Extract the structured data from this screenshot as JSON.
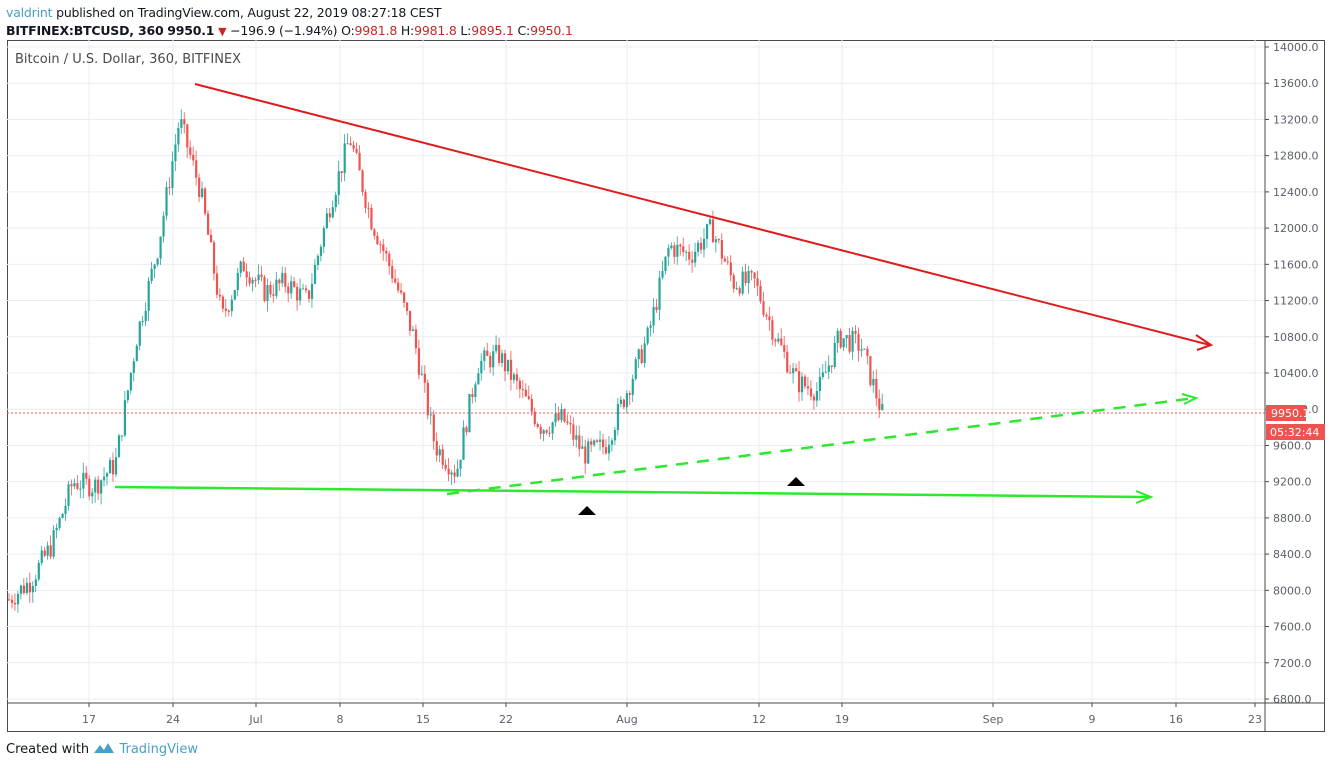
{
  "header": {
    "publisher": "valdrint",
    "published_text": "published on TradingView.com, August 22, 2019 08:27:18 CEST",
    "symbol": "BITFINEX:BTCUSD, 360",
    "last_price": "9950.1",
    "change": "−196.9 (−1.94%)",
    "open_label": "O:",
    "open": "9981.8",
    "high_label": "H:",
    "high": "9981.8",
    "low_label": "L:",
    "low": "9895.1",
    "close_label": "C:",
    "close": "9950.1"
  },
  "legend": {
    "title": "Bitcoin / U.S. Dollar, 360, BITFINEX"
  },
  "price_tag": {
    "price": "9950.1",
    "countdown": "05:32:44",
    "color": "#ef5350"
  },
  "footer": {
    "created_with": "Created with",
    "brand": "TradingView"
  },
  "colors": {
    "up": "#26a69a",
    "down": "#ef5350",
    "resistance_line": "#e01b1b",
    "support_line": "#2ee82e",
    "grid": "#e9eef3",
    "marker": "#000000"
  },
  "chart_data": {
    "type": "candlestick",
    "title": "Bitcoin / U.S. Dollar, 360, BITFINEX",
    "xlabel": "",
    "ylabel": "",
    "ylim": [
      6800,
      14000
    ],
    "y_ticks": [
      "14000.0",
      "13600.0",
      "13200.0",
      "12800.0",
      "12400.0",
      "12000.0",
      "11600.0",
      "11200.0",
      "10800.0",
      "10400.0",
      "10000.0",
      "9600.0",
      "9200.0",
      "8800.0",
      "8400.0",
      "8000.0",
      "7600.0",
      "7200.0",
      "6800.0"
    ],
    "x_ticks": [
      "17",
      "24",
      "Jul",
      "8",
      "15",
      "22",
      "Aug",
      "12",
      "19",
      "Sep",
      "9",
      "16",
      "23"
    ],
    "grid": true,
    "current_price": 9950.1,
    "approx_closes": {
      "x": [
        "Jun 11",
        "Jun 13",
        "Jun 15",
        "Jun 17",
        "Jun 19",
        "Jun 21",
        "Jun 23",
        "Jun 25",
        "Jun 26",
        "Jun 27",
        "Jun 28",
        "Jun 30",
        "Jul 2",
        "Jul 4",
        "Jul 6",
        "Jul 8",
        "Jul 9",
        "Jul 10",
        "Jul 12",
        "Jul 14",
        "Jul 16",
        "Jul 17",
        "Jul 18",
        "Jul 20",
        "Jul 22",
        "Jul 24",
        "Jul 26",
        "Jul 28",
        "Jul 30",
        "Aug 1",
        "Aug 3",
        "Aug 5",
        "Aug 6",
        "Aug 8",
        "Aug 10",
        "Aug 12",
        "Aug 13",
        "Aug 15",
        "Aug 17",
        "Aug 19",
        "Aug 20",
        "Aug 22"
      ],
      "values": [
        7900,
        8100,
        8500,
        9200,
        9150,
        9400,
        10800,
        11800,
        13200,
        12400,
        11000,
        11600,
        11300,
        11400,
        11200,
        12200,
        13000,
        12100,
        11500,
        10800,
        9600,
        9300,
        10500,
        10600,
        10200,
        9800,
        9900,
        9500,
        9600,
        10200,
        10800,
        11800,
        11700,
        12000,
        11400,
        11400,
        10800,
        10300,
        10200,
        10800,
        10700,
        9950
      ]
    },
    "annotations": [
      {
        "type": "trendline",
        "name": "descending resistance",
        "color": "#e01b1b",
        "from": [
          "Jun 26",
          13600
        ],
        "to": [
          "Sep 18",
          10700
        ],
        "arrow": true
      },
      {
        "type": "trendline",
        "name": "horizontal support",
        "color": "#2ee82e",
        "from": [
          "Jun 19",
          9150
        ],
        "to": [
          "Sep 14",
          9050
        ],
        "arrow": true
      },
      {
        "type": "trendline",
        "name": "ascending support (dashed)",
        "color": "#2ee82e",
        "dashed": true,
        "from": [
          "Jul 17",
          9050
        ],
        "to": [
          "Sep 18",
          10100
        ],
        "arrow": true
      },
      {
        "type": "marker",
        "shape": "triangle-up",
        "at": [
          "Jul 29",
          8840
        ]
      },
      {
        "type": "marker",
        "shape": "triangle-up",
        "at": [
          "Aug 15",
          9220
        ]
      }
    ]
  }
}
